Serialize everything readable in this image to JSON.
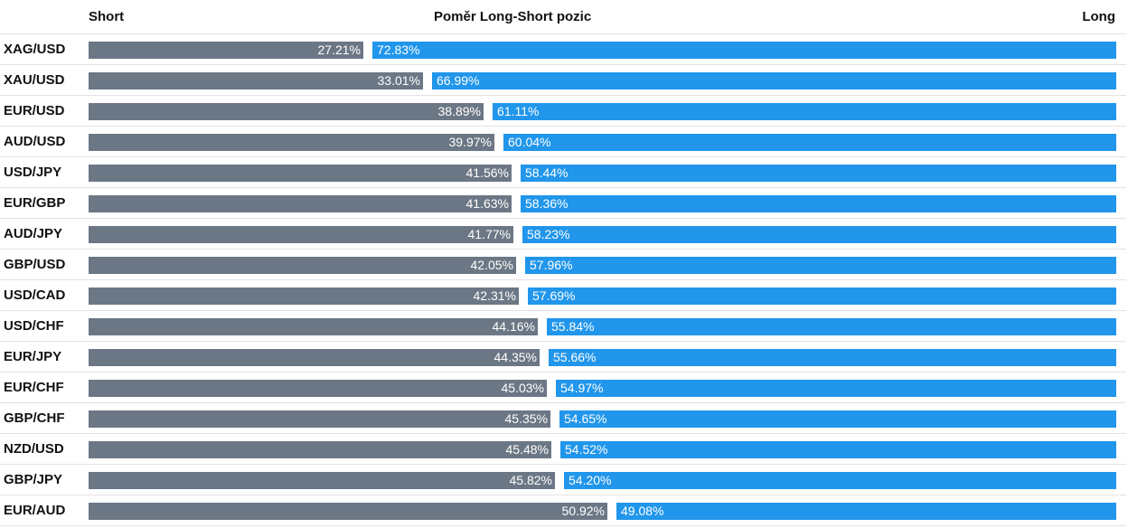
{
  "chart_data": {
    "type": "bar",
    "title": "Poměr Long-Short pozic",
    "short_label": "Short",
    "long_label": "Long",
    "categories": [
      "XAG/USD",
      "XAU/USD",
      "EUR/USD",
      "AUD/USD",
      "USD/JPY",
      "EUR/GBP",
      "AUD/JPY",
      "GBP/USD",
      "USD/CAD",
      "USD/CHF",
      "EUR/JPY",
      "EUR/CHF",
      "GBP/CHF",
      "NZD/USD",
      "GBP/JPY",
      "EUR/AUD"
    ],
    "series": [
      {
        "name": "Short",
        "values": [
          27.21,
          33.01,
          38.89,
          39.97,
          41.56,
          41.63,
          41.77,
          42.05,
          42.31,
          44.16,
          44.35,
          45.03,
          45.35,
          45.48,
          45.82,
          50.92
        ],
        "color": "#6c7785"
      },
      {
        "name": "Long",
        "values": [
          72.83,
          66.99,
          61.11,
          60.04,
          58.44,
          58.36,
          58.23,
          57.96,
          57.69,
          55.84,
          55.66,
          54.97,
          54.65,
          54.52,
          54.2,
          49.08
        ],
        "color": "#2196eb"
      }
    ],
    "value_labels_short": [
      "27.21%",
      "33.01%",
      "38.89%",
      "39.97%",
      "41.56%",
      "41.63%",
      "41.77%",
      "42.05%",
      "42.31%",
      "44.16%",
      "44.35%",
      "45.03%",
      "45.35%",
      "45.48%",
      "45.82%",
      "50.92%"
    ],
    "value_labels_long": [
      "72.83%",
      "66.99%",
      "61.11%",
      "60.04%",
      "58.44%",
      "58.36%",
      "58.23%",
      "57.96%",
      "57.69%",
      "55.84%",
      "55.66%",
      "54.97%",
      "54.65%",
      "54.52%",
      "54.20%",
      "49.08%"
    ],
    "grid": false,
    "legend": "none"
  }
}
